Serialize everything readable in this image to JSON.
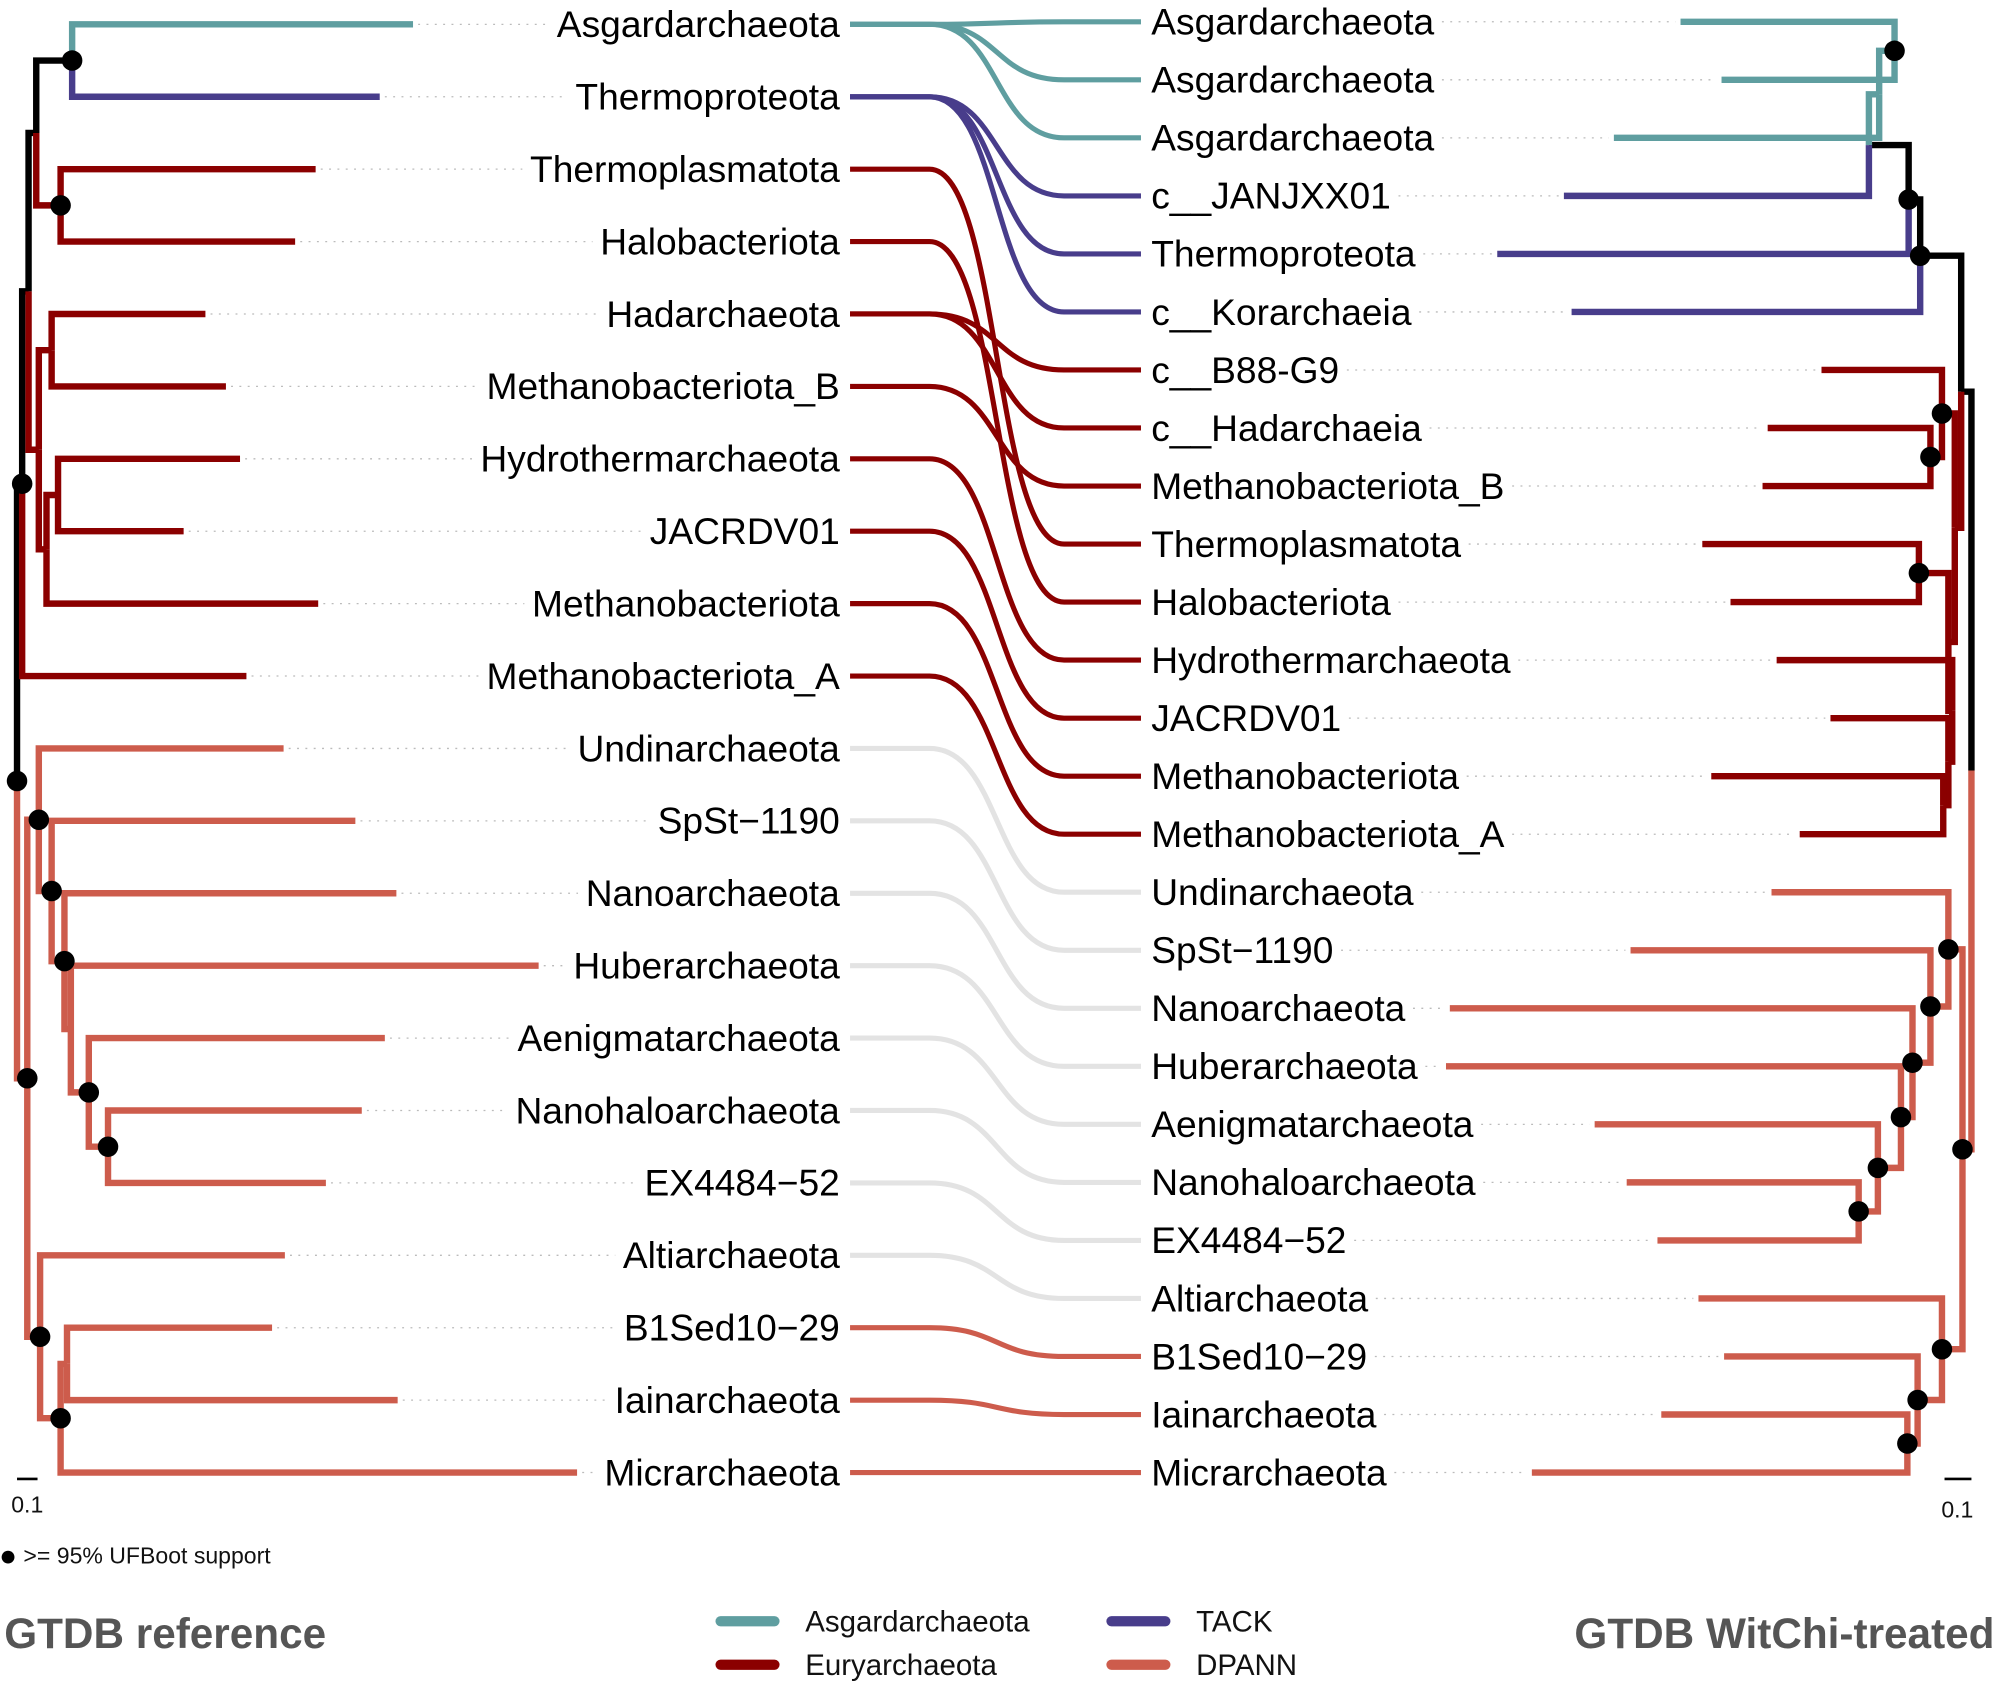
{
  "groups": {
    "asg": {
      "label": "Asgardarchaeota",
      "color": "#5F9EA0"
    },
    "tack": {
      "label": "TACK",
      "color": "#483D8B"
    },
    "eury": {
      "label": "Euryarchaeota",
      "color": "#8B0000"
    },
    "dpann": {
      "label": "DPANN",
      "color": "#CD5C4C"
    },
    "unchanged": {
      "color": "#E3E3E3"
    },
    "internal": {
      "color": "#000000"
    }
  },
  "left_tree": {
    "title": "GTDB reference",
    "scale_label": "0.1",
    "tips": [
      {
        "label": "Asgardarchaeota",
        "group": "asg"
      },
      {
        "label": "Thermoproteota",
        "group": "tack"
      },
      {
        "label": "Thermoplasmatota",
        "group": "eury"
      },
      {
        "label": "Halobacteriota",
        "group": "eury"
      },
      {
        "label": "Hadarchaeota",
        "group": "eury"
      },
      {
        "label": "Methanobacteriota_B",
        "group": "eury"
      },
      {
        "label": "Hydrothermarchaeota",
        "group": "eury"
      },
      {
        "label": "JACRDV01",
        "group": "eury"
      },
      {
        "label": "Methanobacteriota",
        "group": "eury"
      },
      {
        "label": "Methanobacteriota_A",
        "group": "eury"
      },
      {
        "label": "Undinarchaeota",
        "group": "dpann"
      },
      {
        "label": "SpSt−1190",
        "group": "dpann"
      },
      {
        "label": "Nanoarchaeota",
        "group": "dpann"
      },
      {
        "label": "Huberarchaeota",
        "group": "dpann"
      },
      {
        "label": "Aenigmatarchaeota",
        "group": "dpann"
      },
      {
        "label": "Nanohaloarchaeota",
        "group": "dpann"
      },
      {
        "label": "EX4484−52",
        "group": "dpann"
      },
      {
        "label": "Altiarchaeota",
        "group": "dpann"
      },
      {
        "label": "B1Sed10−29",
        "group": "dpann"
      },
      {
        "label": "Iainarchaeota",
        "group": "dpann"
      },
      {
        "label": "Micrarchaeota",
        "group": "dpann"
      }
    ]
  },
  "right_tree": {
    "title": "GTDB WitChi-treated",
    "scale_label": "0.1",
    "tips": [
      {
        "label": "Asgardarchaeota",
        "group": "asg"
      },
      {
        "label": "Asgardarchaeota",
        "group": "asg"
      },
      {
        "label": "Asgardarchaeota",
        "group": "asg"
      },
      {
        "label": "c__JANJXX01",
        "group": "tack"
      },
      {
        "label": "Thermoproteota",
        "group": "tack"
      },
      {
        "label": "c__Korarchaeia",
        "group": "tack"
      },
      {
        "label": "c__B88-G9",
        "group": "eury"
      },
      {
        "label": "c__Hadarchaeia",
        "group": "eury"
      },
      {
        "label": "Methanobacteriota_B",
        "group": "eury"
      },
      {
        "label": "Thermoplasmatota",
        "group": "eury"
      },
      {
        "label": "Halobacteriota",
        "group": "eury"
      },
      {
        "label": "Hydrothermarchaeota",
        "group": "eury"
      },
      {
        "label": "JACRDV01",
        "group": "eury"
      },
      {
        "label": "Methanobacteriota",
        "group": "eury"
      },
      {
        "label": "Methanobacteriota_A",
        "group": "eury"
      },
      {
        "label": "Undinarchaeota",
        "group": "dpann"
      },
      {
        "label": "SpSt−1190",
        "group": "dpann"
      },
      {
        "label": "Nanoarchaeota",
        "group": "dpann"
      },
      {
        "label": "Huberarchaeota",
        "group": "dpann"
      },
      {
        "label": "Aenigmatarchaeota",
        "group": "dpann"
      },
      {
        "label": "Nanohaloarchaeota",
        "group": "dpann"
      },
      {
        "label": "EX4484−52",
        "group": "dpann"
      },
      {
        "label": "Altiarchaeota",
        "group": "dpann"
      },
      {
        "label": "B1Sed10−29",
        "group": "dpann"
      },
      {
        "label": "Iainarchaeota",
        "group": "dpann"
      },
      {
        "label": "Micrarchaeota",
        "group": "dpann"
      }
    ]
  },
  "links": [
    [
      0,
      0,
      "asg"
    ],
    [
      0,
      1,
      "asg"
    ],
    [
      0,
      2,
      "asg"
    ],
    [
      1,
      3,
      "tack"
    ],
    [
      1,
      4,
      "tack"
    ],
    [
      1,
      5,
      "tack"
    ],
    [
      2,
      9,
      "eury"
    ],
    [
      3,
      10,
      "eury"
    ],
    [
      4,
      6,
      "eury"
    ],
    [
      4,
      7,
      "eury"
    ],
    [
      5,
      8,
      "eury"
    ],
    [
      6,
      11,
      "eury"
    ],
    [
      7,
      12,
      "eury"
    ],
    [
      8,
      13,
      "eury"
    ],
    [
      9,
      14,
      "eury"
    ],
    [
      10,
      15,
      "unchanged"
    ],
    [
      11,
      16,
      "unchanged"
    ],
    [
      12,
      17,
      "unchanged"
    ],
    [
      13,
      18,
      "unchanged"
    ],
    [
      14,
      19,
      "unchanged"
    ],
    [
      15,
      20,
      "unchanged"
    ],
    [
      16,
      21,
      "unchanged"
    ],
    [
      17,
      22,
      "unchanged"
    ],
    [
      18,
      23,
      "dpann"
    ],
    [
      19,
      24,
      "dpann"
    ],
    [
      20,
      25,
      "dpann"
    ]
  ],
  "support_legend": ">= 95% UFBoot support",
  "legend": {
    "items": [
      {
        "label": "Asgardarchaeota",
        "group": "asg"
      },
      {
        "label": "Euryarchaeota",
        "group": "eury"
      },
      {
        "label": "TACK",
        "group": "tack"
      },
      {
        "label": "DPANN",
        "group": "dpann"
      }
    ]
  }
}
